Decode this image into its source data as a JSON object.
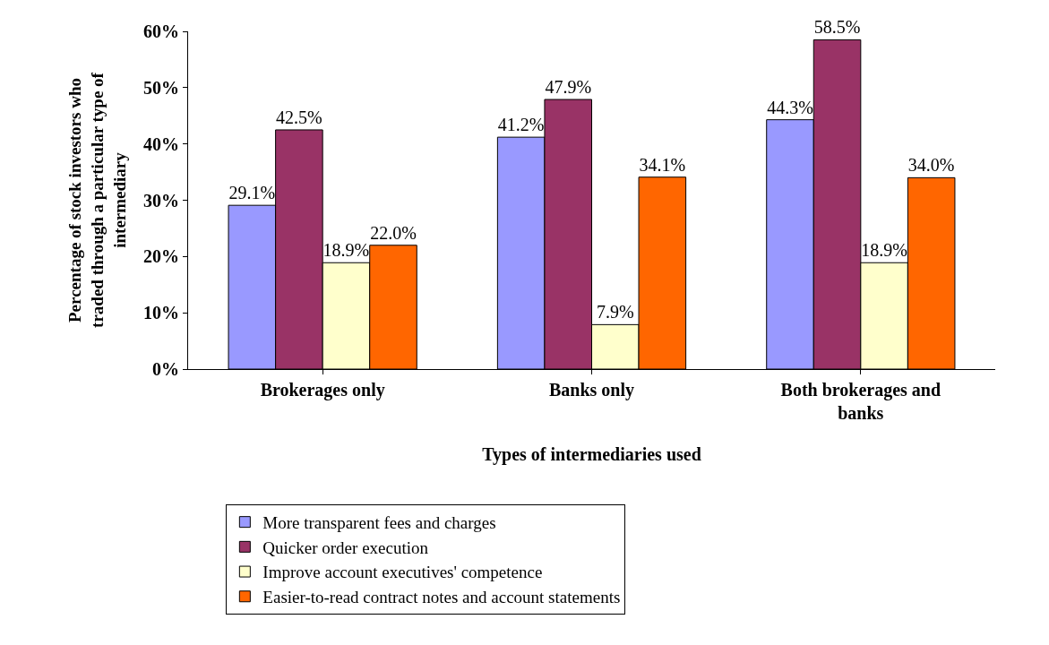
{
  "chart_data": {
    "type": "bar",
    "xlabel": "Types of intermediaries used",
    "ylabel": "Percentage of stock investors who traded through a particular type of intermediary",
    "categories": [
      "Brokerages only",
      "Banks only",
      "Both brokerages and banks"
    ],
    "series": [
      {
        "name": "More transparent fees and charges",
        "color": "#9999ff",
        "values": [
          29.1,
          41.2,
          44.3
        ],
        "value_labels": [
          "29.1%",
          "41.2%",
          "44.3%"
        ]
      },
      {
        "name": "Quicker order execution",
        "color": "#993366",
        "values": [
          42.5,
          47.9,
          58.5
        ],
        "value_labels": [
          "42.5%",
          "47.9%",
          "58.5%"
        ]
      },
      {
        "name": "Improve account executives' competence",
        "color": "#ffffcc",
        "values": [
          18.9,
          7.9,
          18.9
        ],
        "value_labels": [
          "18.9%",
          "7.9%",
          "18.9%"
        ]
      },
      {
        "name": "Easier-to-read contract notes and account statements",
        "color": "#ff6600",
        "values": [
          22.0,
          34.1,
          34.0
        ],
        "value_labels": [
          "22.0%",
          "34.1%",
          "34.0%"
        ]
      }
    ],
    "ylim": [
      0,
      60
    ],
    "yticks": [
      {
        "value": 0,
        "label": "0%"
      },
      {
        "value": 10,
        "label": "10%"
      },
      {
        "value": 20,
        "label": "20%"
      },
      {
        "value": 30,
        "label": "30%"
      },
      {
        "value": 40,
        "label": "40%"
      },
      {
        "value": 50,
        "label": "50%"
      },
      {
        "value": 60,
        "label": "60%"
      }
    ],
    "grid": false,
    "legend": "bottom"
  }
}
